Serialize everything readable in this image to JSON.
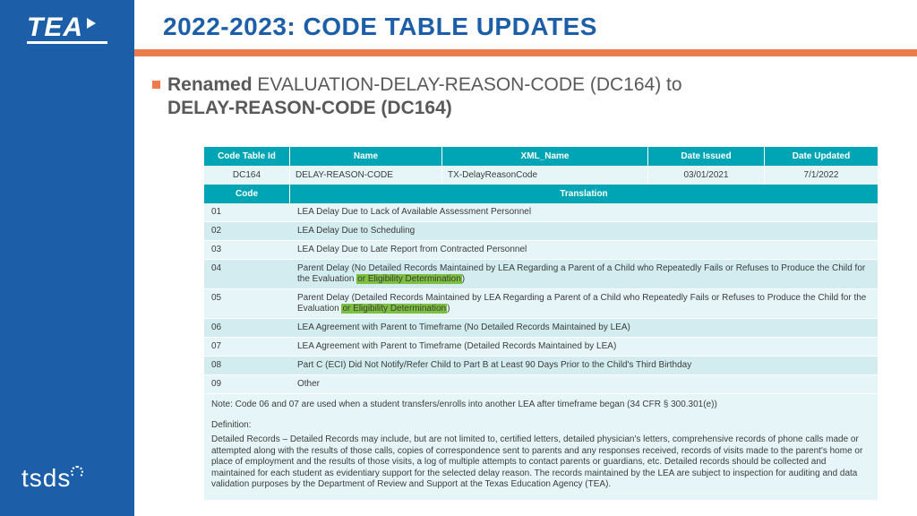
{
  "colors": {
    "sidebar": "#1c5fa8",
    "accent": "#ee7b4c",
    "table_header": "#00a5b5",
    "row_light": "#e6f5f7",
    "row_dark": "#d2ecef",
    "highlight": "#7dbf3f",
    "body_text": "#595959"
  },
  "logos": {
    "tea": "TEA",
    "tsds": "tsds"
  },
  "title": "2022-2023: CODE TABLE UPDATES",
  "bullet": {
    "lead": "Renamed",
    "text1": " EVALUATION-DELAY-REASON-CODE (DC164) to ",
    "text2": "DELAY-REASON-CODE (DC164)"
  },
  "table": {
    "headers1": {
      "id": "Code Table Id",
      "name": "Name",
      "xml": "XML_Name",
      "issued": "Date Issued",
      "updated": "Date Updated"
    },
    "top_row": {
      "id": "DC164",
      "name": "DELAY-REASON-CODE",
      "xml": "TX-DelayReasonCode",
      "issued": "03/01/2021",
      "updated": "7/1/2022"
    },
    "headers2": {
      "code": "Code",
      "translation": "Translation"
    },
    "rows": [
      {
        "code": "01",
        "tr": "LEA Delay Due to Lack of Available Assessment Personnel"
      },
      {
        "code": "02",
        "tr": "LEA Delay Due to Scheduling"
      },
      {
        "code": "03",
        "tr": "LEA Delay Due to Late Report from Contracted Personnel"
      },
      {
        "code": "04",
        "tr_pre": "Parent Delay (No Detailed Records Maintained by LEA Regarding a Parent of a Child who Repeatedly Fails or Refuses to Produce the Child for the Evaluation ",
        "hl": "or Eligibility Determination",
        "tr_post": ")"
      },
      {
        "code": "05",
        "tr_pre": "Parent Delay (Detailed Records Maintained by LEA Regarding a Parent of a Child who Repeatedly Fails or Refuses to Produce the Child for the Evaluation ",
        "hl": "or Eligibility Determination",
        "tr_post": ")"
      },
      {
        "code": "06",
        "tr": "LEA Agreement with Parent to Timeframe (No Detailed Records Maintained by LEA)"
      },
      {
        "code": "07",
        "tr": "LEA Agreement with Parent to Timeframe (Detailed Records Maintained by LEA)"
      },
      {
        "code": "08",
        "tr": "Part C (ECI) Did Not Notify/Refer Child to Part B at Least 90 Days Prior to the Child's Third Birthday"
      },
      {
        "code": "09",
        "tr": "Other"
      }
    ],
    "footer": {
      "note": "Note: Code 06 and 07 are used when a student transfers/enrolls into another LEA after timeframe began (34 CFR § 300.301(e))",
      "defn_label": "Definition:",
      "defn": "Detailed Records – Detailed Records may include, but are not limited to, certified letters, detailed physician's letters, comprehensive records of phone calls made or attempted along with the results of those calls, copies of correspondence sent to parents and any responses received, records of visits made to the parent's home or place of employment and the results of those visits, a log of multiple attempts to contact parents or guardians, etc. Detailed records should be collected and maintained for each student as evidentiary support for the selected delay reason. The records maintained by the LEA are subject to inspection for auditing and data validation purposes by the Department of Review and Support at the Texas Education Agency (TEA)."
    }
  }
}
